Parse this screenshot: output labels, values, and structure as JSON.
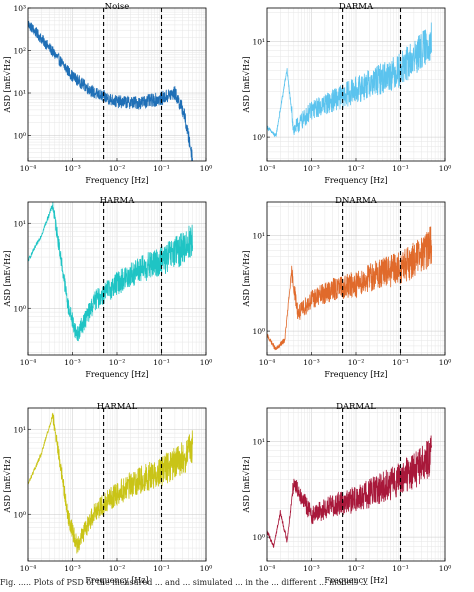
{
  "figure": {
    "caption": "Fig. ..... Plots of PSD of the measured ... and ... simulated ... in the ... different ... models ..."
  },
  "axis_common": {
    "xlabel": "Frequency [Hz]",
    "ylabel": "ASD [mE√Hz]",
    "x_ticks": [
      "10⁻⁴",
      "10⁻³",
      "10⁻²",
      "10⁻¹",
      "10⁰"
    ],
    "x_range_log10": [
      -4,
      0
    ],
    "dashed_lines_hz": [
      0.005,
      0.1
    ]
  },
  "chart_data": [
    {
      "type": "line",
      "title": "Noise",
      "color": "#1f6fb6",
      "xlabel": "Frequency [Hz]",
      "ylabel": "ASD [mE√Hz]",
      "xlim": [
        0.0001,
        1
      ],
      "ylim_log10": [
        -0.6,
        3
      ],
      "y_ticks": [
        "10⁰",
        "10¹",
        "10²",
        "10³"
      ],
      "y_tick_exps": [
        0,
        1,
        2,
        3
      ],
      "log_scale": true,
      "grid": true,
      "x_log10": [
        -4,
        -3.5,
        -3,
        -2.5,
        -2,
        -1.5,
        -1,
        -0.7,
        -0.5,
        -0.3
      ],
      "y_log10": [
        2.6,
        2.0,
        1.35,
        0.95,
        0.75,
        0.72,
        0.82,
        0.95,
        0.5,
        -0.6
      ]
    },
    {
      "type": "line",
      "title": "DARMA",
      "color": "#5bc3ee",
      "xlabel": "Frequency [Hz]",
      "ylabel": "ASD [mE√Hz]",
      "xlim": [
        0.0001,
        1
      ],
      "ylim_log10": [
        -0.25,
        1.35
      ],
      "y_ticks": [
        "10⁰",
        "10¹"
      ],
      "y_tick_exps": [
        0,
        1
      ],
      "log_scale": true,
      "grid": true,
      "x_log10": [
        -4,
        -3.8,
        -3.55,
        -3.4,
        -3,
        -2.5,
        -2,
        -1.5,
        -1,
        -0.5,
        -0.3
      ],
      "y_log10": [
        0.1,
        0.0,
        0.7,
        0.05,
        0.25,
        0.35,
        0.45,
        0.55,
        0.65,
        0.85,
        0.95
      ]
    },
    {
      "type": "line",
      "title": "HARMA",
      "color": "#1fc4c4",
      "xlabel": "Frequency [Hz]",
      "ylabel": "ASD [mE√Hz]",
      "xlim": [
        0.0001,
        1
      ],
      "ylim_log10": [
        -0.55,
        1.25
      ],
      "y_ticks": [
        "10⁰",
        "10¹"
      ],
      "y_tick_exps": [
        0,
        1
      ],
      "log_scale": true,
      "grid": true,
      "x_log10": [
        -4,
        -3.7,
        -3.45,
        -3.3,
        -3.1,
        -2.9,
        -2.5,
        -2,
        -1.5,
        -1,
        -0.5,
        -0.3
      ],
      "y_log10": [
        0.55,
        0.85,
        1.2,
        0.7,
        0.0,
        -0.35,
        0.05,
        0.25,
        0.4,
        0.5,
        0.65,
        0.75
      ]
    },
    {
      "type": "line",
      "title": "DNARMA",
      "color": "#e06a2b",
      "xlabel": "Frequency [Hz]",
      "ylabel": "ASD [mE√Hz]",
      "xlim": [
        0.0001,
        1
      ],
      "ylim_log10": [
        -0.25,
        1.35
      ],
      "y_ticks": [
        "10⁰",
        "10¹"
      ],
      "y_tick_exps": [
        0,
        1
      ],
      "log_scale": true,
      "grid": true,
      "x_log10": [
        -4,
        -3.8,
        -3.6,
        -3.45,
        -3.3,
        -3,
        -2.5,
        -2,
        -1.5,
        -1,
        -0.5,
        -0.3
      ],
      "y_log10": [
        -0.05,
        -0.2,
        -0.1,
        0.6,
        0.15,
        0.3,
        0.4,
        0.45,
        0.55,
        0.6,
        0.75,
        0.85
      ]
    },
    {
      "type": "line",
      "title": "HARMAL",
      "color": "#c9c417",
      "xlabel": "Frequency [Hz]",
      "ylabel": "ASD [mE√Hz]",
      "xlim": [
        0.0001,
        1
      ],
      "ylim_log10": [
        -0.55,
        1.25
      ],
      "y_ticks": [
        "10⁰",
        "10¹"
      ],
      "y_tick_exps": [
        0,
        1
      ],
      "log_scale": true,
      "grid": true,
      "x_log10": [
        -4,
        -3.7,
        -3.45,
        -3.3,
        -3.1,
        -2.9,
        -2.5,
        -2,
        -1.5,
        -1,
        -0.5,
        -0.3
      ],
      "y_log10": [
        0.35,
        0.7,
        1.15,
        0.65,
        -0.05,
        -0.4,
        0.0,
        0.2,
        0.35,
        0.45,
        0.6,
        0.72
      ]
    },
    {
      "type": "line",
      "title": "DARMAL",
      "color": "#a8183a",
      "xlabel": "Frequency [Hz]",
      "ylabel": "ASD [mE√Hz]",
      "xlim": [
        0.0001,
        1
      ],
      "ylim_log10": [
        -0.25,
        1.35
      ],
      "y_ticks": [
        "10⁰",
        "10¹"
      ],
      "y_tick_exps": [
        0,
        1
      ],
      "log_scale": true,
      "grid": true,
      "x_log10": [
        -4,
        -3.85,
        -3.7,
        -3.55,
        -3.4,
        -3,
        -2.5,
        -2,
        -1.5,
        -1,
        -0.5,
        -0.3
      ],
      "y_log10": [
        0.05,
        -0.1,
        0.25,
        -0.05,
        0.55,
        0.2,
        0.3,
        0.35,
        0.45,
        0.55,
        0.7,
        0.8
      ]
    }
  ]
}
